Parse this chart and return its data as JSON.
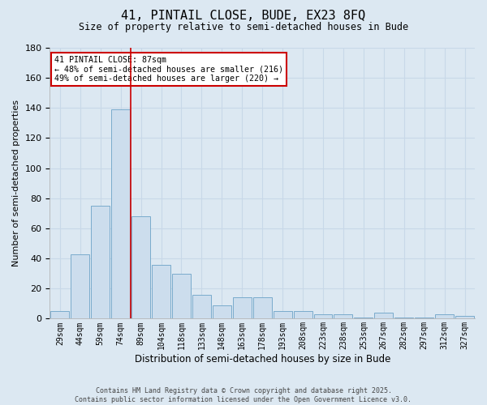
{
  "title1": "41, PINTAIL CLOSE, BUDE, EX23 8FQ",
  "title2": "Size of property relative to semi-detached houses in Bude",
  "xlabel": "Distribution of semi-detached houses by size in Bude",
  "ylabel": "Number of semi-detached properties",
  "categories": [
    "29sqm",
    "44sqm",
    "59sqm",
    "74sqm",
    "89sqm",
    "104sqm",
    "118sqm",
    "133sqm",
    "148sqm",
    "163sqm",
    "178sqm",
    "193sqm",
    "208sqm",
    "223sqm",
    "238sqm",
    "253sqm",
    "267sqm",
    "282sqm",
    "297sqm",
    "312sqm",
    "327sqm"
  ],
  "values": [
    5,
    43,
    75,
    139,
    68,
    36,
    30,
    16,
    9,
    14,
    14,
    5,
    5,
    3,
    3,
    1,
    4,
    1,
    1,
    3,
    2
  ],
  "bar_color": "#ccdded",
  "bar_edge_color": "#7aabcc",
  "red_line_x": 4,
  "ylim": [
    0,
    180
  ],
  "yticks": [
    0,
    20,
    40,
    60,
    80,
    100,
    120,
    140,
    160,
    180
  ],
  "annotation_title": "41 PINTAIL CLOSE: 87sqm",
  "annotation_line1": "← 48% of semi-detached houses are smaller (216)",
  "annotation_line2": "49% of semi-detached houses are larger (220) →",
  "annotation_box_color": "#ffffff",
  "annotation_box_edge": "#cc0000",
  "red_line_color": "#cc0000",
  "grid_color": "#c8d8e8",
  "background_color": "#dce8f2",
  "footer1": "Contains HM Land Registry data © Crown copyright and database right 2025.",
  "footer2": "Contains public sector information licensed under the Open Government Licence v3.0."
}
